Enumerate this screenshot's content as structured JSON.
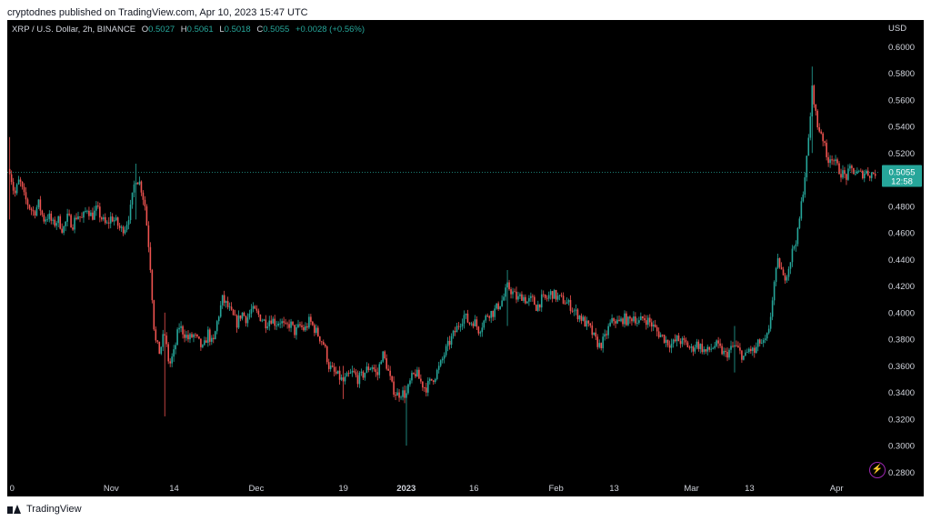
{
  "header": {
    "publisher": "cryptodnes published on TradingView.com, Apr 10, 2023 15:47 UTC"
  },
  "legend": {
    "symbol": "XRP / U.S. Dollar, 2h, BINANCE",
    "o_label": "O",
    "o_value": "0.5027",
    "h_label": "H",
    "h_value": "0.5061",
    "l_label": "L",
    "l_value": "0.5018",
    "c_label": "C",
    "c_value": "0.5055",
    "change": "+0.0028 (+0.56%)"
  },
  "footer": {
    "brand": "TradingView"
  },
  "colors": {
    "up": "#26a69a",
    "down": "#ef5350",
    "background": "#000000",
    "price_tag": "#26a69a"
  },
  "chart_data": {
    "type": "candlestick",
    "currency": "USD",
    "interval": "2h",
    "ylim": [
      0.27,
      0.62
    ],
    "y_ticks": [
      "0.2800",
      "0.3000",
      "0.3200",
      "0.3400",
      "0.3600",
      "0.3800",
      "0.4000",
      "0.4200",
      "0.4400",
      "0.4600",
      "0.4800",
      "0.5000",
      "0.5200",
      "0.5400",
      "0.5600",
      "0.5800",
      "0.6000"
    ],
    "x_ticks": [
      {
        "label": "0",
        "day": 0
      },
      {
        "label": "Nov",
        "day": 21
      },
      {
        "label": "14",
        "day": 34
      },
      {
        "label": "Dec",
        "day": 51
      },
      {
        "label": "19",
        "day": 69
      },
      {
        "label": "2023",
        "day": 82
      },
      {
        "label": "16",
        "day": 96
      },
      {
        "label": "Feb",
        "day": 113
      },
      {
        "label": "13",
        "day": 125
      },
      {
        "label": "Mar",
        "day": 141
      },
      {
        "label": "13",
        "day": 153
      },
      {
        "label": "Apr",
        "day": 171
      }
    ],
    "day_range": [
      -0.5,
      180
    ],
    "last_price": "0.5055",
    "last_price_value": 0.5055,
    "countdown": "12:58",
    "path": [
      [
        0,
        0.508
      ],
      [
        1,
        0.488
      ],
      [
        2,
        0.5
      ],
      [
        3,
        0.487
      ],
      [
        4,
        0.48
      ],
      [
        5,
        0.475
      ],
      [
        6,
        0.482
      ],
      [
        7,
        0.47
      ],
      [
        8,
        0.473
      ],
      [
        9,
        0.466
      ],
      [
        10,
        0.47
      ],
      [
        11,
        0.462
      ],
      [
        12,
        0.472
      ],
      [
        13,
        0.466
      ],
      [
        14,
        0.474
      ],
      [
        15,
        0.47
      ],
      [
        16,
        0.479
      ],
      [
        17,
        0.472
      ],
      [
        18,
        0.478
      ],
      [
        19,
        0.471
      ],
      [
        20,
        0.465
      ],
      [
        21,
        0.472
      ],
      [
        22,
        0.468
      ],
      [
        23,
        0.462
      ],
      [
        24,
        0.465
      ],
      [
        25,
        0.478
      ],
      [
        26,
        0.502
      ],
      [
        27,
        0.497
      ],
      [
        28,
        0.48
      ],
      [
        29,
        0.44
      ],
      [
        30,
        0.38
      ],
      [
        31,
        0.37
      ],
      [
        32,
        0.385
      ],
      [
        33,
        0.36
      ],
      [
        34,
        0.37
      ],
      [
        35,
        0.39
      ],
      [
        36,
        0.385
      ],
      [
        37,
        0.38
      ],
      [
        38,
        0.383
      ],
      [
        39,
        0.378
      ],
      [
        40,
        0.372
      ],
      [
        41,
        0.385
      ],
      [
        42,
        0.375
      ],
      [
        43,
        0.395
      ],
      [
        44,
        0.41
      ],
      [
        45,
        0.405
      ],
      [
        46,
        0.398
      ],
      [
        47,
        0.392
      ],
      [
        48,
        0.4
      ],
      [
        49,
        0.395
      ],
      [
        50,
        0.402
      ],
      [
        51,
        0.4
      ],
      [
        52,
        0.396
      ],
      [
        53,
        0.392
      ],
      [
        54,
        0.396
      ],
      [
        55,
        0.392
      ],
      [
        56,
        0.394
      ],
      [
        57,
        0.388
      ],
      [
        58,
        0.392
      ],
      [
        59,
        0.385
      ],
      [
        60,
        0.39
      ],
      [
        61,
        0.387
      ],
      [
        62,
        0.394
      ],
      [
        63,
        0.388
      ],
      [
        64,
        0.382
      ],
      [
        65,
        0.376
      ],
      [
        66,
        0.36
      ],
      [
        67,
        0.355
      ],
      [
        68,
        0.352
      ],
      [
        69,
        0.348
      ],
      [
        70,
        0.352
      ],
      [
        71,
        0.355
      ],
      [
        72,
        0.35
      ],
      [
        73,
        0.353
      ],
      [
        74,
        0.358
      ],
      [
        75,
        0.36
      ],
      [
        76,
        0.352
      ],
      [
        77,
        0.37
      ],
      [
        78,
        0.36
      ],
      [
        79,
        0.345
      ],
      [
        80,
        0.338
      ],
      [
        81,
        0.34
      ],
      [
        82,
        0.338
      ],
      [
        83,
        0.35
      ],
      [
        84,
        0.355
      ],
      [
        85,
        0.348
      ],
      [
        86,
        0.343
      ],
      [
        87,
        0.348
      ],
      [
        88,
        0.353
      ],
      [
        89,
        0.36
      ],
      [
        90,
        0.37
      ],
      [
        91,
        0.378
      ],
      [
        92,
        0.385
      ],
      [
        93,
        0.392
      ],
      [
        94,
        0.398
      ],
      [
        95,
        0.392
      ],
      [
        96,
        0.394
      ],
      [
        97,
        0.387
      ],
      [
        98,
        0.393
      ],
      [
        99,
        0.4
      ],
      [
        100,
        0.4
      ],
      [
        101,
        0.405
      ],
      [
        102,
        0.41
      ],
      [
        103,
        0.42
      ],
      [
        104,
        0.415
      ],
      [
        105,
        0.41
      ],
      [
        106,
        0.413
      ],
      [
        107,
        0.408
      ],
      [
        108,
        0.41
      ],
      [
        109,
        0.404
      ],
      [
        110,
        0.41
      ],
      [
        111,
        0.41
      ],
      [
        112,
        0.415
      ],
      [
        113,
        0.412
      ],
      [
        114,
        0.41
      ],
      [
        115,
        0.408
      ],
      [
        116,
        0.405
      ],
      [
        117,
        0.4
      ],
      [
        118,
        0.397
      ],
      [
        119,
        0.392
      ],
      [
        120,
        0.388
      ],
      [
        121,
        0.38
      ],
      [
        122,
        0.375
      ],
      [
        123,
        0.38
      ],
      [
        124,
        0.39
      ],
      [
        125,
        0.395
      ],
      [
        126,
        0.392
      ],
      [
        127,
        0.396
      ],
      [
        128,
        0.393
      ],
      [
        129,
        0.398
      ],
      [
        130,
        0.392
      ],
      [
        131,
        0.396
      ],
      [
        132,
        0.394
      ],
      [
        133,
        0.39
      ],
      [
        134,
        0.385
      ],
      [
        135,
        0.382
      ],
      [
        136,
        0.378
      ],
      [
        137,
        0.376
      ],
      [
        138,
        0.38
      ],
      [
        139,
        0.378
      ],
      [
        140,
        0.376
      ],
      [
        141,
        0.372
      ],
      [
        142,
        0.377
      ],
      [
        143,
        0.374
      ],
      [
        144,
        0.37
      ],
      [
        145,
        0.373
      ],
      [
        146,
        0.376
      ],
      [
        147,
        0.372
      ],
      [
        148,
        0.368
      ],
      [
        149,
        0.372
      ],
      [
        150,
        0.375
      ],
      [
        151,
        0.37
      ],
      [
        152,
        0.366
      ],
      [
        153,
        0.373
      ],
      [
        154,
        0.37
      ],
      [
        155,
        0.378
      ],
      [
        156,
        0.376
      ],
      [
        157,
        0.385
      ],
      [
        158,
        0.42
      ],
      [
        159,
        0.44
      ],
      [
        160,
        0.425
      ],
      [
        161,
        0.433
      ],
      [
        162,
        0.448
      ],
      [
        163,
        0.46
      ],
      [
        164,
        0.49
      ],
      [
        165,
        0.52
      ],
      [
        166,
        0.57
      ],
      [
        167,
        0.54
      ],
      [
        168,
        0.535
      ],
      [
        169,
        0.515
      ],
      [
        170,
        0.518
      ],
      [
        171,
        0.51
      ],
      [
        172,
        0.505
      ],
      [
        173,
        0.502
      ],
      [
        174,
        0.508
      ],
      [
        175,
        0.505
      ],
      [
        176,
        0.504
      ],
      [
        177,
        0.506
      ],
      [
        178,
        0.504
      ],
      [
        179,
        0.5055
      ]
    ],
    "extremes": [
      {
        "day": 0,
        "high": 0.532,
        "low": 0.47
      },
      {
        "day": 26,
        "high": 0.512,
        "low": 0.47
      },
      {
        "day": 32,
        "high": 0.4,
        "low": 0.322
      },
      {
        "day": 69,
        "high": 0.36,
        "low": 0.335
      },
      {
        "day": 82,
        "high": 0.345,
        "low": 0.3
      },
      {
        "day": 103,
        "high": 0.432,
        "low": 0.39
      },
      {
        "day": 150,
        "high": 0.39,
        "low": 0.355
      },
      {
        "day": 166,
        "high": 0.585,
        "low": 0.52
      }
    ]
  }
}
